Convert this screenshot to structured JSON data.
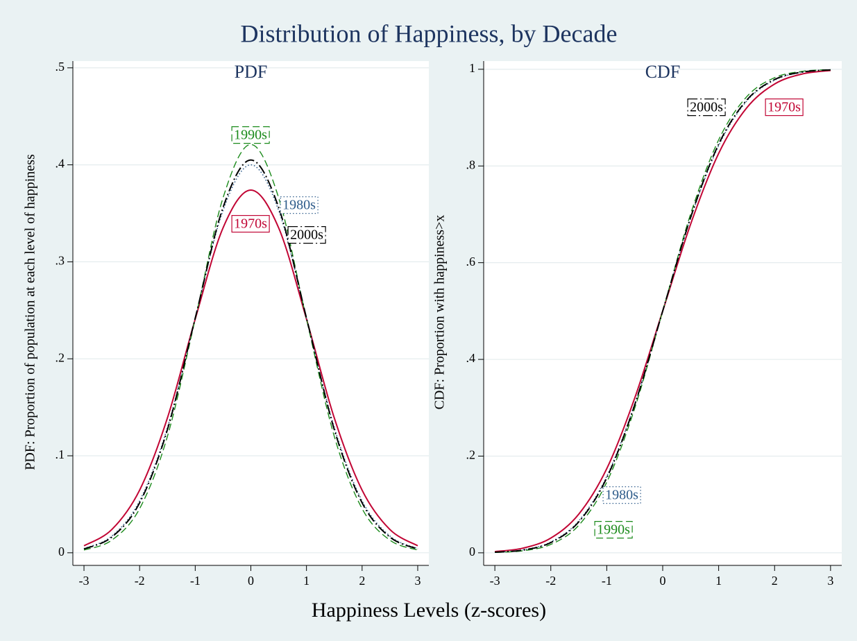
{
  "title": "Distribution of Happiness, by Decade",
  "xlabel": "Happiness Levels (z-scores)",
  "chart_data": [
    {
      "type": "line",
      "subtitle": "PDF",
      "ylabel": "PDF: Proportion of population at each level of happiness",
      "x": [
        -3,
        -2.5,
        -2,
        -1.5,
        -1,
        -0.5,
        0,
        0.5,
        1,
        1.5,
        2,
        2.5,
        3
      ],
      "xlim": [
        -3.2,
        3.2
      ],
      "xticks": [
        -3,
        -2,
        -1,
        0,
        1,
        2,
        3
      ],
      "ylim": [
        -0.013,
        0.507
      ],
      "yticks": [
        0,
        {
          "value": 0.1,
          "label": ".1"
        },
        {
          "value": 0.2,
          "label": ".2"
        },
        {
          "value": 0.3,
          "label": ".3"
        },
        {
          "value": 0.4,
          "label": ".4"
        },
        {
          "value": 0.5,
          "label": ".5"
        }
      ],
      "grid": true,
      "series": [
        {
          "name": "1970s",
          "color": "#c10534",
          "values": [
            0.0072,
            0.024,
            0.0646,
            0.139,
            0.241,
            0.335,
            0.374,
            0.335,
            0.241,
            0.139,
            0.0646,
            0.024,
            0.0072
          ]
        },
        {
          "name": "1980s",
          "color": "#2d5b8a",
          "values": [
            0.0043,
            0.0172,
            0.0535,
            0.129,
            0.242,
            0.353,
            0.4,
            0.353,
            0.242,
            0.129,
            0.0535,
            0.0172,
            0.0043
          ]
        },
        {
          "name": "1990s",
          "color": "#1a8a1a",
          "values": [
            0.0028,
            0.013,
            0.0455,
            0.12,
            0.241,
            0.366,
            0.421,
            0.366,
            0.241,
            0.12,
            0.0455,
            0.013,
            0.0028
          ]
        },
        {
          "name": "2000s",
          "color": "#000000",
          "values": [
            0.0039,
            0.0162,
            0.0515,
            0.127,
            0.242,
            0.356,
            0.405,
            0.356,
            0.242,
            0.127,
            0.0515,
            0.0162,
            0.0039
          ]
        }
      ]
    },
    {
      "type": "line",
      "subtitle": "CDF",
      "ylabel": "CDF: Proportion with happiness>x",
      "x": [
        -3,
        -2.5,
        -2,
        -1.5,
        -1,
        -0.5,
        0,
        0.5,
        1,
        1.5,
        2,
        2.5,
        3
      ],
      "xlim": [
        -3.2,
        3.2
      ],
      "xticks": [
        -3,
        -2,
        -1,
        0,
        1,
        2,
        3
      ],
      "ylim": [
        -0.026,
        1.017
      ],
      "yticks": [
        0,
        {
          "value": 0.2,
          "label": ".2"
        },
        {
          "value": 0.4,
          "label": ".4"
        },
        {
          "value": 0.6,
          "label": ".6"
        },
        {
          "value": 0.8,
          "label": ".8"
        },
        1
      ],
      "grid": true,
      "series": [
        {
          "name": "1970s",
          "color": "#c10534",
          "values": [
            0.0025,
            0.0096,
            0.0305,
            0.08,
            0.174,
            0.32,
            0.5,
            0.68,
            0.826,
            0.92,
            0.9695,
            0.9904,
            0.9975
          ]
        },
        {
          "name": "1980s",
          "color": "#2d5b8a",
          "values": [
            0.0013,
            0.0061,
            0.0224,
            0.066,
            0.158,
            0.308,
            0.5,
            0.692,
            0.842,
            0.934,
            0.9776,
            0.9939,
            0.9987
          ]
        },
        {
          "name": "1990s",
          "color": "#1a8a1a",
          "values": [
            0.0008,
            0.0042,
            0.0174,
            0.057,
            0.146,
            0.299,
            0.5,
            0.701,
            0.854,
            0.943,
            0.9826,
            0.9958,
            0.9992
          ]
        },
        {
          "name": "2000s",
          "color": "#000000",
          "values": [
            0.0012,
            0.0056,
            0.0212,
            0.064,
            0.155,
            0.306,
            0.5,
            0.694,
            0.845,
            0.936,
            0.9788,
            0.9944,
            0.9988
          ]
        }
      ]
    }
  ]
}
